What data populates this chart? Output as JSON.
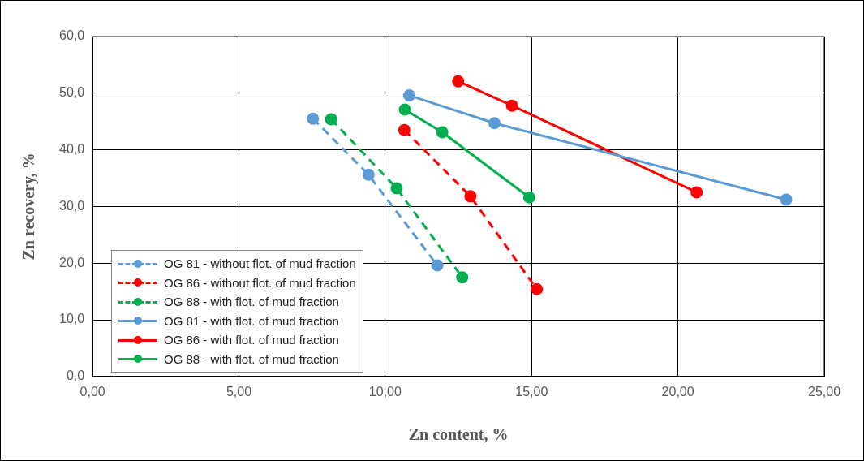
{
  "chart_data": {
    "type": "line",
    "xlabel": "Zn content, %",
    "ylabel": "Zn recovery, %",
    "xlim": [
      0,
      25
    ],
    "xticks": [
      {
        "value": 0,
        "label": "0,00"
      },
      {
        "value": 5,
        "label": "5,00"
      },
      {
        "value": 10,
        "label": "10,00"
      },
      {
        "value": 15,
        "label": "15,00"
      },
      {
        "value": 20,
        "label": "20,00"
      },
      {
        "value": 25,
        "label": "25,00"
      }
    ],
    "ylim": [
      0,
      60
    ],
    "yticks": [
      {
        "value": 0,
        "label": "0,0"
      },
      {
        "value": 10,
        "label": "10,0"
      },
      {
        "value": 20,
        "label": "20,0"
      },
      {
        "value": 30,
        "label": "30,0"
      },
      {
        "value": 40,
        "label": "40,0"
      },
      {
        "value": 50,
        "label": "50,0"
      },
      {
        "value": 60,
        "label": "60,0"
      }
    ],
    "grid": true,
    "legend": "bottom left",
    "marker": "circle",
    "series": [
      {
        "name": "OG 81 - without flot. of mud fraction",
        "color": "#5b9bd5",
        "line_style": "dashed",
        "x": [
          7.53,
          9.43,
          11.78
        ],
        "values": [
          45.5,
          35.6,
          19.6
        ]
      },
      {
        "name": "OG 86 - without flot. of mud fraction",
        "color": "#ff0000",
        "line_style": "dashed",
        "x": [
          10.65,
          12.91,
          15.18
        ],
        "values": [
          43.5,
          31.8,
          15.4
        ]
      },
      {
        "name": "OG 88 - with flot. of mud fraction",
        "color": "#00b050",
        "line_style": "dashed",
        "x": [
          8.15,
          10.39,
          12.63
        ],
        "values": [
          45.4,
          33.2,
          17.5
        ]
      },
      {
        "name": "OG 81 - with flot. of mud fraction",
        "color": "#5b9bd5",
        "line_style": "solid",
        "x": [
          10.82,
          13.73,
          23.7
        ],
        "values": [
          49.6,
          44.7,
          31.2
        ]
      },
      {
        "name": "OG 86 - with flot. of mud fraction",
        "color": "#ff0000",
        "line_style": "solid",
        "x": [
          12.49,
          14.33,
          20.64
        ],
        "values": [
          52.1,
          47.8,
          32.5
        ]
      },
      {
        "name": "OG 88 - with flot. of mud fraction",
        "color": "#00b050",
        "line_style": "solid",
        "x": [
          10.67,
          11.95,
          14.92
        ],
        "values": [
          47.1,
          43.1,
          31.6
        ]
      }
    ]
  }
}
